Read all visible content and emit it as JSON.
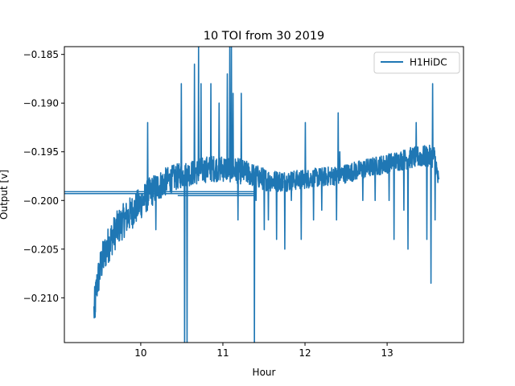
{
  "chart_data": {
    "type": "line",
    "title": "10 TOI from 30 2019",
    "xlabel": "Hour",
    "ylabel": "Output [v]",
    "xlim": [
      9.07,
      13.93
    ],
    "ylim": [
      -0.2146,
      -0.1842
    ],
    "xticks": [
      10,
      11,
      12,
      13
    ],
    "yticks": [
      -0.21,
      -0.205,
      -0.2,
      -0.195,
      -0.19,
      -0.185
    ],
    "ytick_labels": [
      "−0.210",
      "−0.205",
      "−0.200",
      "−0.195",
      "−0.190",
      "−0.185"
    ],
    "grid": false,
    "legend": {
      "position": "top-right",
      "entries": [
        "H1HiDC"
      ]
    },
    "colors": {
      "series": "#1f77b4",
      "frame": "#000000"
    },
    "series": [
      {
        "name": "H1HiDC",
        "baseline": [
          [
            9.43,
            -0.2115
          ],
          [
            9.47,
            -0.2085
          ],
          [
            9.52,
            -0.2065
          ],
          [
            9.58,
            -0.205
          ],
          [
            9.65,
            -0.2038
          ],
          [
            9.72,
            -0.2028
          ],
          [
            9.8,
            -0.202
          ],
          [
            9.88,
            -0.2013
          ],
          [
            9.95,
            -0.2007
          ],
          [
            10.03,
            -0.2
          ],
          [
            10.1,
            -0.1993
          ],
          [
            10.2,
            -0.1986
          ],
          [
            10.3,
            -0.1981
          ],
          [
            10.4,
            -0.1977
          ],
          [
            10.5,
            -0.1974
          ],
          [
            10.6,
            -0.1972
          ],
          [
            10.7,
            -0.197
          ],
          [
            10.8,
            -0.1968
          ],
          [
            10.9,
            -0.1967
          ],
          [
            11.0,
            -0.1967
          ],
          [
            11.1,
            -0.1968
          ],
          [
            11.2,
            -0.197
          ],
          [
            11.3,
            -0.1972
          ],
          [
            11.4,
            -0.1975
          ],
          [
            11.5,
            -0.1978
          ],
          [
            11.6,
            -0.198
          ],
          [
            11.7,
            -0.198
          ],
          [
            11.8,
            -0.198
          ],
          [
            11.9,
            -0.1979
          ],
          [
            12.0,
            -0.1978
          ],
          [
            12.1,
            -0.1977
          ],
          [
            12.2,
            -0.1976
          ],
          [
            12.3,
            -0.1975
          ],
          [
            12.4,
            -0.1974
          ],
          [
            12.5,
            -0.1972
          ],
          [
            12.6,
            -0.197
          ],
          [
            12.7,
            -0.1968
          ],
          [
            12.8,
            -0.1966
          ],
          [
            12.9,
            -0.1964
          ],
          [
            13.0,
            -0.1962
          ],
          [
            13.1,
            -0.196
          ],
          [
            13.2,
            -0.1958
          ],
          [
            13.3,
            -0.1956
          ],
          [
            13.4,
            -0.1955
          ],
          [
            13.5,
            -0.1955
          ],
          [
            13.58,
            -0.1955
          ],
          [
            13.63,
            -0.1985
          ]
        ],
        "noise": [
          [
            9.43,
            0.002
          ],
          [
            10.0,
            0.0017
          ],
          [
            10.5,
            0.0013
          ],
          [
            11.0,
            0.0014
          ],
          [
            11.4,
            0.0012
          ],
          [
            12.0,
            0.001
          ],
          [
            13.0,
            0.001
          ],
          [
            13.6,
            0.0012
          ]
        ],
        "spikes": [
          [
            9.44,
            -0.212
          ],
          [
            10.08,
            -0.192
          ],
          [
            10.18,
            -0.203
          ],
          [
            10.49,
            -0.188
          ],
          [
            10.53,
            -0.215
          ],
          [
            10.56,
            -0.215
          ],
          [
            10.65,
            -0.186
          ],
          [
            10.7,
            -0.1842
          ],
          [
            10.73,
            -0.188
          ],
          [
            10.85,
            -0.188
          ],
          [
            10.95,
            -0.19
          ],
          [
            11.05,
            -0.187
          ],
          [
            11.08,
            -0.1842
          ],
          [
            11.1,
            -0.1842
          ],
          [
            11.12,
            -0.189
          ],
          [
            11.18,
            -0.202
          ],
          [
            11.22,
            -0.189
          ],
          [
            11.38,
            -0.215
          ],
          [
            11.4,
            -0.2
          ],
          [
            11.5,
            -0.203
          ],
          [
            11.55,
            -0.202
          ],
          [
            11.65,
            -0.204
          ],
          [
            11.75,
            -0.205
          ],
          [
            11.83,
            -0.2
          ],
          [
            11.95,
            -0.204
          ],
          [
            12.0,
            -0.192
          ],
          [
            12.1,
            -0.202
          ],
          [
            12.2,
            -0.201
          ],
          [
            12.38,
            -0.202
          ],
          [
            12.4,
            -0.191
          ],
          [
            12.42,
            -0.195
          ],
          [
            12.7,
            -0.2
          ],
          [
            12.85,
            -0.2
          ],
          [
            13.02,
            -0.2
          ],
          [
            13.08,
            -0.204
          ],
          [
            13.2,
            -0.201
          ],
          [
            13.25,
            -0.205
          ],
          [
            13.35,
            -0.192
          ],
          [
            13.48,
            -0.204
          ],
          [
            13.53,
            -0.2085
          ],
          [
            13.55,
            -0.188
          ],
          [
            13.58,
            -0.202
          ]
        ],
        "connectors": [
          [
            [
              9.07,
              -0.1991
            ],
            [
              11.38,
              -0.1991
            ]
          ],
          [
            [
              9.07,
              -0.1993
            ],
            [
              11.38,
              -0.1993
            ]
          ],
          [
            [
              10.45,
              -0.1995
            ],
            [
              11.38,
              -0.1995
            ]
          ]
        ]
      }
    ]
  }
}
